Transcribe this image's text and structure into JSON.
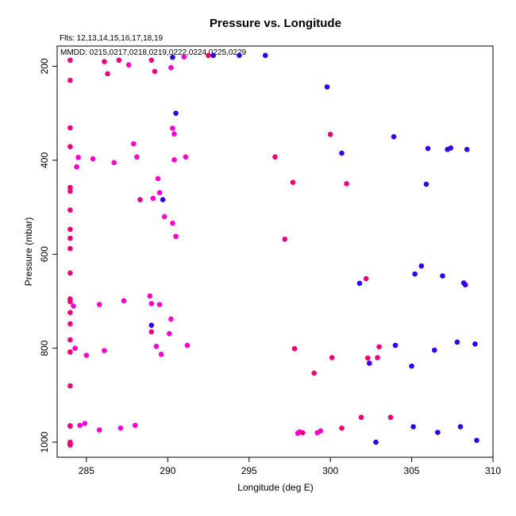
{
  "chart_data": {
    "type": "scatter",
    "title": "Pressure vs. Longitude",
    "annotations": [
      "Flts: 12,13,14,15,16,17,18,19",
      "MMDD: 0215,0217,0218,0219,0222,0224,0225,0229"
    ],
    "xlabel": "Longitude (deg E)",
    "ylabel": "Pressure (mbar)",
    "xlim": [
      283.2,
      310.0
    ],
    "ylim": [
      1032,
      157
    ],
    "y_reversed": true,
    "xticks": [
      285,
      290,
      295,
      300,
      305,
      310
    ],
    "xtick_labels": [
      "285",
      "290",
      "295",
      "300",
      "305",
      "310"
    ],
    "yticks": [
      200,
      400,
      600,
      800,
      1000
    ],
    "ytick_labels": [
      "200",
      "400",
      "600",
      "800",
      "1000"
    ],
    "grid": false,
    "legend": "none",
    "colors": {
      "magenta": "#ff00cc",
      "pink": "#ee0077",
      "blue": "#3300ee"
    },
    "series": [
      {
        "color": "#ff00cc",
        "x": [
          287.6,
          290.2,
          291.0,
          290.3,
          290.4,
          285.4,
          288.1,
          286.7,
          291.1,
          290.4,
          284.5,
          289.4,
          289.1,
          289.5,
          290.3,
          289.8,
          290.5,
          284.4,
          287.9,
          285.8,
          288.9,
          289.5,
          284.2,
          290.2,
          289.0,
          290.1,
          287.3,
          291.2,
          286.1,
          289.3,
          285.0,
          284.3,
          289.6,
          284.9,
          287.1,
          284.6,
          285.8,
          284.0,
          284.0,
          288.0,
          298.1,
          299.2,
          299.4,
          298.0
        ],
        "y": [
          197,
          203,
          180,
          332,
          344,
          397,
          393,
          405,
          393,
          399,
          394,
          439,
          481,
          469,
          534,
          520,
          562,
          414,
          365,
          707,
          689,
          707,
          710,
          738,
          705,
          769,
          699,
          794,
          805,
          796,
          815,
          800,
          813,
          960,
          970,
          964,
          974,
          966,
          1003,
          964,
          978,
          980,
          976,
          981
        ]
      },
      {
        "color": "#ee0077",
        "x": [
          284.0,
          284.0,
          284.0,
          284.0,
          284.0,
          284.0,
          284.0,
          284.0,
          284.0,
          284.0,
          284.0,
          284.0,
          284.0,
          284.0,
          284.0,
          284.0,
          284.0,
          284.0,
          284.0,
          284.0,
          284.0,
          284.0,
          284.0,
          284.0,
          284.0,
          286.1,
          286.3,
          287.0,
          289.0,
          289.2,
          292.5,
          296.6,
          297.7,
          301.0,
          300.0,
          297.2,
          302.2,
          289.0,
          288.3,
          297.8,
          299.0,
          300.1,
          302.3,
          302.9,
          303.0,
          301.9,
          303.7,
          298.3,
          300.7
        ],
        "y": [
          187,
          230,
          331,
          371,
          458,
          466,
          506,
          547,
          566,
          588,
          640,
          695,
          701,
          724,
          748,
          782,
          808,
          808,
          880,
          965,
          1000,
          1003,
          1004,
          1005,
          1006,
          190,
          216,
          187,
          187,
          211,
          177,
          393,
          447,
          450,
          345,
          568,
          652,
          765,
          484,
          801,
          853,
          820,
          821,
          820,
          797,
          947,
          947,
          980,
          970
        ]
      },
      {
        "color": "#3300ee",
        "x": [
          290.3,
          292.8,
          294.4,
          296.0,
          290.5,
          299.8,
          300.7,
          303.9,
          306.0,
          307.2,
          307.4,
          308.4,
          305.9,
          301.8,
          305.2,
          305.6,
          306.9,
          308.2,
          308.3,
          289.0,
          289.7,
          302.4,
          304.0,
          305.0,
          306.4,
          307.8,
          308.9,
          302.8,
          305.1,
          306.6,
          308.0,
          309.0
        ],
        "y": [
          181,
          177,
          177,
          177,
          300,
          244,
          385,
          350,
          375,
          377,
          374,
          377,
          451,
          662,
          642,
          625,
          646,
          661,
          665,
          751,
          484,
          832,
          794,
          838,
          804,
          787,
          791,
          1000,
          967,
          979,
          967,
          996
        ]
      }
    ]
  }
}
